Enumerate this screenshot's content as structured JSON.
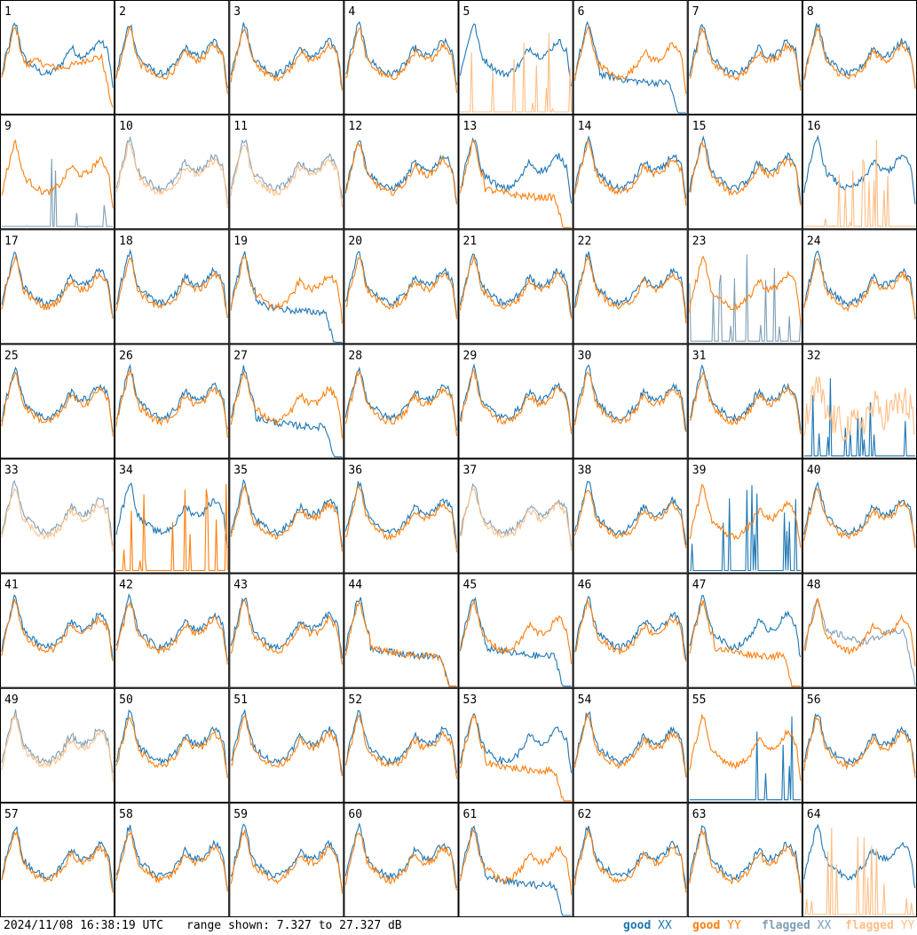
{
  "chart_data": {
    "type": "line",
    "layout": "small-multiples 8x8",
    "panel_labels": [
      "1",
      "2",
      "3",
      "4",
      "5",
      "6",
      "7",
      "8",
      "9",
      "10",
      "11",
      "12",
      "13",
      "14",
      "15",
      "16",
      "17",
      "18",
      "19",
      "20",
      "21",
      "22",
      "23",
      "24",
      "25",
      "26",
      "27",
      "28",
      "29",
      "30",
      "31",
      "32",
      "33",
      "34",
      "35",
      "36",
      "37",
      "38",
      "39",
      "40",
      "41",
      "42",
      "43",
      "44",
      "45",
      "46",
      "47",
      "48",
      "49",
      "50",
      "51",
      "52",
      "53",
      "54",
      "55",
      "56",
      "57",
      "58",
      "59",
      "60",
      "61",
      "62",
      "63",
      "64"
    ],
    "ylim": [
      7.327,
      27.327
    ],
    "yunit": "dB",
    "series": [
      {
        "name": "good XX",
        "color": "#1f77b4"
      },
      {
        "name": "good YY",
        "color": "#ff7f0e"
      },
      {
        "name": "flagged XX",
        "color": "#7f9fb7"
      },
      {
        "name": "flagged YY",
        "color": "#ffbf87"
      }
    ],
    "panel_flags": {
      "1": {
        "xx": "good",
        "yy": "good",
        "xx_shape": "normal",
        "yy_shape": "dropoff_mid"
      },
      "5": {
        "xx": "good",
        "yy": "flagged",
        "xx_shape": "normal",
        "yy_shape": "spikes"
      },
      "6": {
        "xx": "good",
        "yy": "good",
        "xx_shape": "dropoff",
        "yy_shape": "normal"
      },
      "9": {
        "xx": "flagged",
        "yy": "good",
        "xx_shape": "spikes",
        "yy_shape": "normal"
      },
      "10": {
        "xx": "flagged",
        "yy": "flagged",
        "xx_shape": "normal",
        "yy_shape": "normal"
      },
      "11": {
        "xx": "flagged",
        "yy": "flagged",
        "xx_shape": "normal",
        "yy_shape": "normal"
      },
      "13": {
        "xx": "good",
        "yy": "good",
        "xx_shape": "normal",
        "yy_shape": "dropoff"
      },
      "16": {
        "xx": "good",
        "yy": "flagged",
        "xx_shape": "normal",
        "yy_shape": "spikes"
      },
      "19": {
        "xx": "good",
        "yy": "good",
        "xx_shape": "dropoff",
        "yy_shape": "normal"
      },
      "23": {
        "xx": "flagged",
        "yy": "good",
        "xx_shape": "spikes",
        "yy_shape": "normal"
      },
      "27": {
        "xx": "good",
        "yy": "good",
        "xx_shape": "dropoff",
        "yy_shape": "normal"
      },
      "32": {
        "xx": "good",
        "yy": "flagged",
        "xx_shape": "spikes",
        "yy_shape": "noisy"
      },
      "33": {
        "xx": "flagged",
        "yy": "flagged",
        "xx_shape": "normal",
        "yy_shape": "normal"
      },
      "34": {
        "xx": "good",
        "yy": "good",
        "xx_shape": "normal",
        "yy_shape": "spikes"
      },
      "37": {
        "xx": "flagged",
        "yy": "flagged",
        "xx_shape": "normal",
        "yy_shape": "normal"
      },
      "39": {
        "xx": "good",
        "yy": "good",
        "xx_shape": "spikes",
        "yy_shape": "normal"
      },
      "44": {
        "xx": "good",
        "yy": "good",
        "xx_shape": "dropoff",
        "yy_shape": "dropoff"
      },
      "45": {
        "xx": "good",
        "yy": "good",
        "xx_shape": "dropoff",
        "yy_shape": "normal"
      },
      "47": {
        "xx": "good",
        "yy": "good",
        "xx_shape": "normal",
        "yy_shape": "dropoff"
      },
      "48": {
        "xx": "flagged",
        "yy": "good",
        "xx_shape": "dropoff_mid",
        "yy_shape": "normal"
      },
      "49": {
        "xx": "flagged",
        "yy": "flagged",
        "xx_shape": "normal",
        "yy_shape": "normal"
      },
      "53": {
        "xx": "good",
        "yy": "good",
        "xx_shape": "normal",
        "yy_shape": "dropoff"
      },
      "55": {
        "xx": "good",
        "yy": "good",
        "xx_shape": "spikes",
        "yy_shape": "normal"
      },
      "61": {
        "xx": "good",
        "yy": "good",
        "xx_shape": "dropoff",
        "yy_shape": "normal"
      },
      "64": {
        "xx": "good",
        "yy": "flagged",
        "xx_shape": "normal",
        "yy_shape": "spikes"
      }
    },
    "grid": false
  },
  "footer": {
    "timestamp": "2024/11/08 16:38:19 UTC",
    "range_text": "range shown: 7.327 to 27.327 dB",
    "legend": [
      {
        "word": "good",
        "pol": "XX",
        "color": "#1f77b4"
      },
      {
        "word": "good",
        "pol": "YY",
        "color": "#ff7f0e"
      },
      {
        "word": "flagged",
        "pol": "XX",
        "color": "#7f9fb7"
      },
      {
        "word": "flagged",
        "pol": "YY",
        "color": "#ffbf87"
      }
    ]
  }
}
